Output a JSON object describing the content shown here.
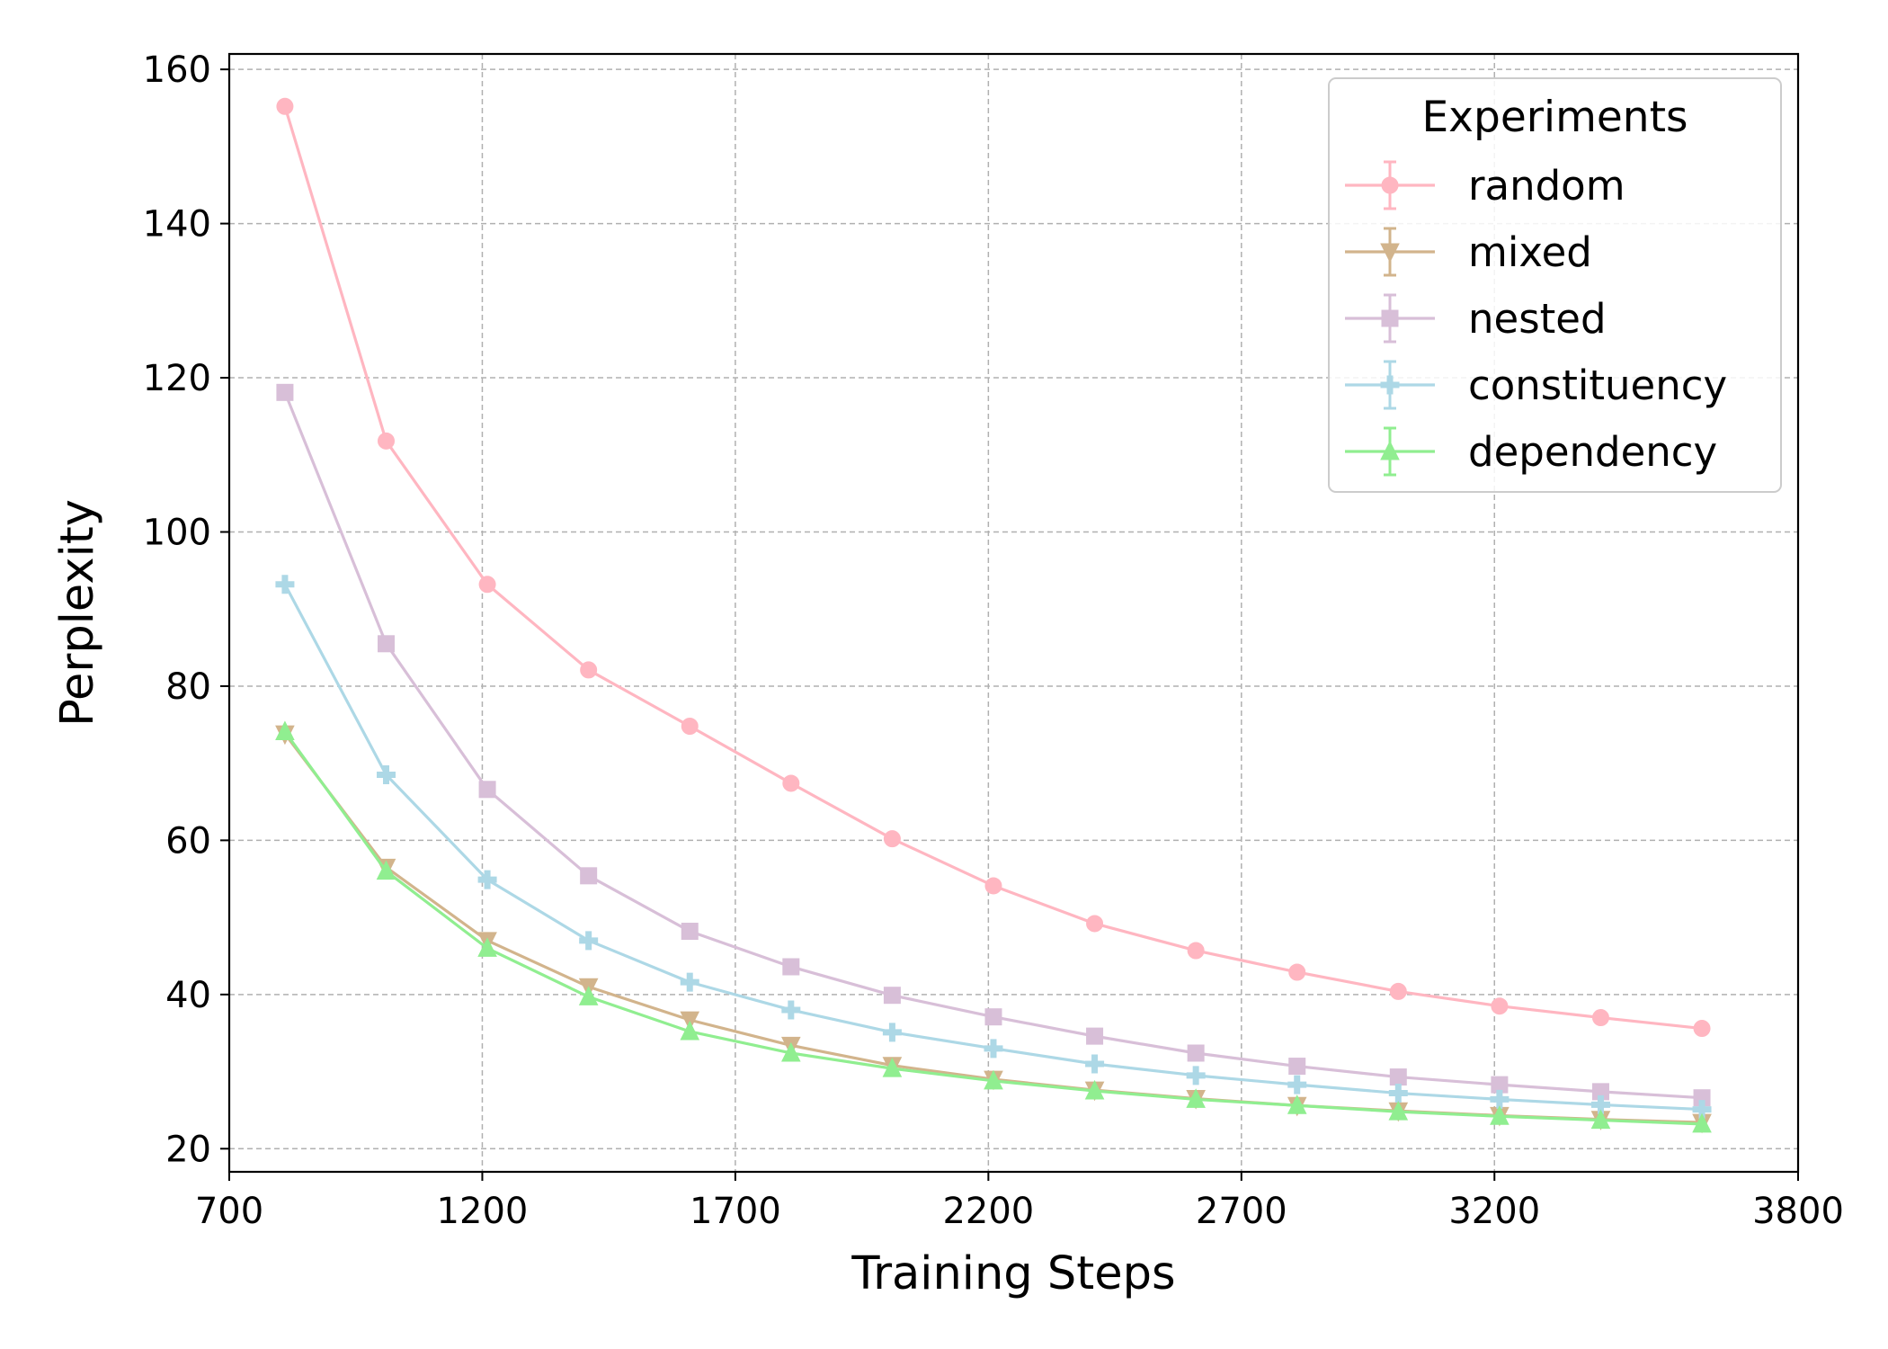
{
  "chart_data": {
    "type": "line",
    "xlabel": "Training Steps",
    "ylabel": "Perplexity",
    "xlim": [
      700,
      3800
    ],
    "ylim": [
      17,
      162
    ],
    "xticks": [
      700,
      1200,
      1700,
      2200,
      2700,
      3200,
      3800
    ],
    "yticks": [
      20,
      40,
      60,
      80,
      100,
      120,
      140,
      160
    ],
    "grid": true,
    "legend": {
      "title": "Experiments",
      "placement": "top-right"
    },
    "x": [
      810,
      1010,
      1210,
      1410,
      1610,
      1810,
      2010,
      2210,
      2410,
      2610,
      2810,
      3010,
      3210,
      3410,
      3610
    ],
    "series": [
      {
        "name": "random",
        "color": "#FFB6C1",
        "marker": "circle",
        "values": [
          155.2,
          111.8,
          93.2,
          82.1,
          74.8,
          67.4,
          60.2,
          54.1,
          49.2,
          45.7,
          42.9,
          40.4,
          38.5,
          37.0,
          35.6
        ]
      },
      {
        "name": "mixed",
        "color": "#D2B48C",
        "marker": "triangle-down",
        "values": [
          73.8,
          56.5,
          47.0,
          41.0,
          36.7,
          33.4,
          30.8,
          29.0,
          27.6,
          26.5,
          25.6,
          24.9,
          24.3,
          23.8,
          23.4
        ]
      },
      {
        "name": "nested",
        "color": "#D8BFD8",
        "marker": "square",
        "values": [
          118.1,
          85.5,
          66.6,
          55.4,
          48.2,
          43.6,
          39.9,
          37.1,
          34.6,
          32.4,
          30.7,
          29.3,
          28.3,
          27.4,
          26.6
        ]
      },
      {
        "name": "constituency",
        "color": "#ADD8E6",
        "marker": "plus",
        "values": [
          93.2,
          68.5,
          54.9,
          47.0,
          41.6,
          38.0,
          35.1,
          33.0,
          31.0,
          29.5,
          28.3,
          27.2,
          26.4,
          25.7,
          25.1
        ]
      },
      {
        "name": "dependency",
        "color": "#90EE90",
        "marker": "triangle-up",
        "values": [
          74.1,
          56.0,
          46.0,
          39.7,
          35.2,
          32.4,
          30.4,
          28.8,
          27.5,
          26.4,
          25.6,
          24.8,
          24.2,
          23.7,
          23.2
        ]
      }
    ]
  }
}
